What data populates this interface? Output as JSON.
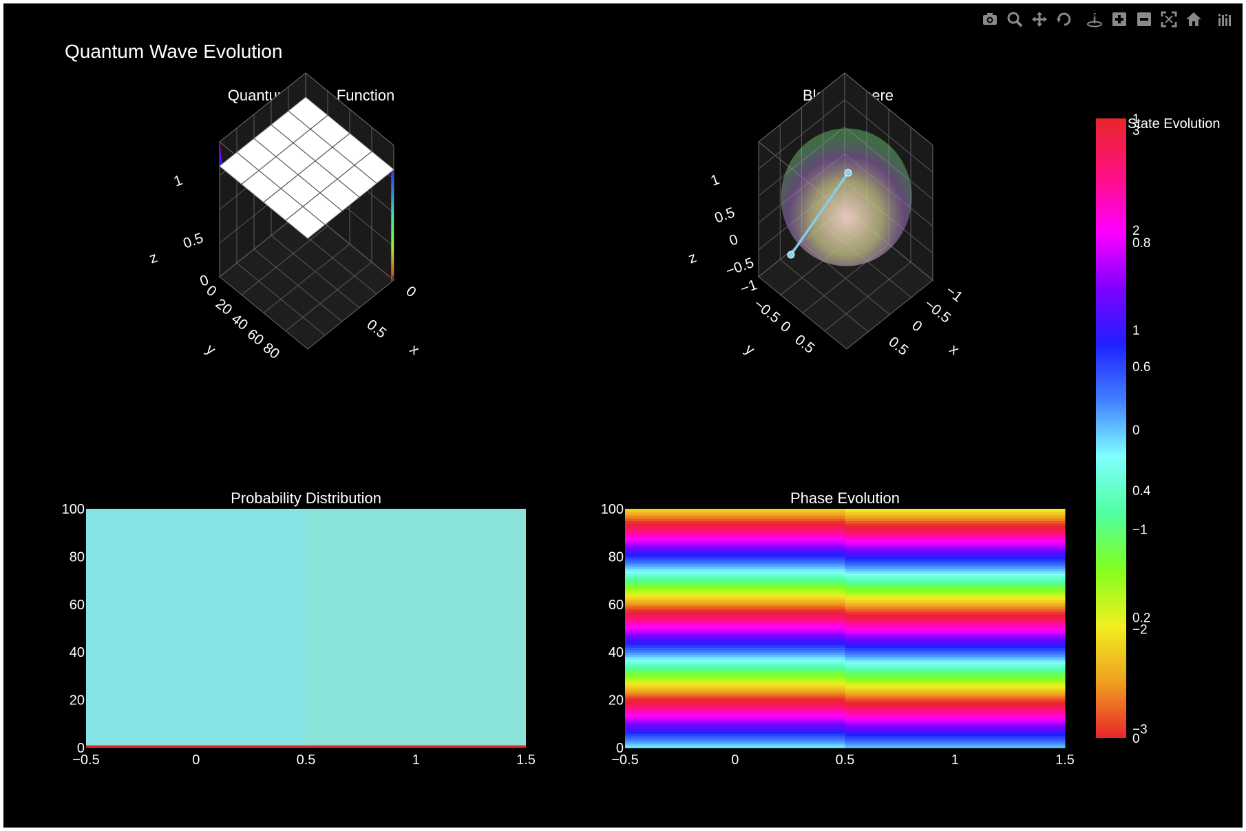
{
  "title": "Quantum Wave Evolution",
  "toolbar": {
    "buttons": [
      {
        "name": "camera-icon"
      },
      {
        "name": "zoom-icon"
      },
      {
        "name": "pan-icon"
      },
      {
        "name": "orbit-icon"
      },
      {
        "name": "turntable-icon"
      },
      {
        "name": "zoom-in-icon"
      },
      {
        "name": "zoom-out-icon"
      },
      {
        "name": "autoscale-icon"
      },
      {
        "name": "home-icon"
      },
      {
        "name": "plotly-logo-icon"
      }
    ]
  },
  "chart_data": [
    {
      "type": "surface",
      "title": "Quantum Wave Function",
      "axes": {
        "x": "x",
        "y": "y",
        "z": "z"
      },
      "x_ticks": [
        "0",
        "0.5"
      ],
      "y_ticks": [
        "0",
        "20",
        "40",
        "60",
        "80"
      ],
      "z_ticks": [
        "0",
        "0.5",
        "1"
      ],
      "surface_z": 0.82
    },
    {
      "type": "scatter3d",
      "title": "Bloch Sphere",
      "axes": {
        "x": "x",
        "y": "y",
        "z": "z"
      },
      "x_ticks": [
        "−1",
        "−0.5",
        "0",
        "0.5"
      ],
      "y_ticks": [
        "−1",
        "−0.5",
        "0",
        "0.5"
      ],
      "z_ticks": [
        "−1",
        "−0.5",
        "0",
        "0.5",
        "1"
      ],
      "state_vector": {
        "from": [
          0,
          0,
          1
        ],
        "to": [
          -1,
          0,
          0
        ],
        "color": "#87ceeb"
      }
    },
    {
      "type": "heatmap",
      "title": "Probability Distribution",
      "xlim": [
        -0.5,
        1.5
      ],
      "ylim": [
        0,
        100
      ],
      "x_ticks": [
        "−0.5",
        "0",
        "0.5",
        "1",
        "1.5"
      ],
      "y_ticks": [
        "0",
        "20",
        "40",
        "60",
        "80",
        "100"
      ],
      "columns": [
        0,
        1
      ],
      "column_colors": [
        "#88e3e4",
        "#89e3d8"
      ],
      "bottom_row_color": "#e8262a"
    },
    {
      "type": "heatmap",
      "title": "Phase Evolution",
      "xlim": [
        -0.5,
        1.5
      ],
      "ylim": [
        0,
        100
      ],
      "x_ticks": [
        "−0.5",
        "0",
        "0.5",
        "1",
        "1.5"
      ],
      "y_ticks": [
        "0",
        "20",
        "40",
        "60",
        "80",
        "100"
      ],
      "phase_period": 37,
      "column_phase_offset": [
        0,
        0.25
      ]
    }
  ],
  "colorbar": {
    "title": "State Evolution",
    "colors": [
      "#e8262a",
      "#f0a020",
      "#f0f020",
      "#80ff20",
      "#50ffa0",
      "#80ffff",
      "#4080ff",
      "#2020ff",
      "#8000ff",
      "#ff00ff",
      "#ff1080",
      "#e8262a"
    ],
    "scale_a": [
      {
        "label": "−3",
        "frac": 0.015
      },
      {
        "label": "−2",
        "frac": 0.176
      },
      {
        "label": "−1",
        "frac": 0.337
      },
      {
        "label": "0",
        "frac": 0.498
      },
      {
        "label": "1",
        "frac": 0.659
      },
      {
        "label": "2",
        "frac": 0.82
      },
      {
        "label": "3",
        "frac": 0.981
      }
    ],
    "scale_b": [
      {
        "label": "0",
        "frac": 0
      },
      {
        "label": "0.2",
        "frac": 0.195
      },
      {
        "label": "0.4",
        "frac": 0.4
      },
      {
        "label": "0.6",
        "frac": 0.6
      },
      {
        "label": "0.8",
        "frac": 0.8
      },
      {
        "label": "1",
        "frac": 1
      }
    ]
  }
}
